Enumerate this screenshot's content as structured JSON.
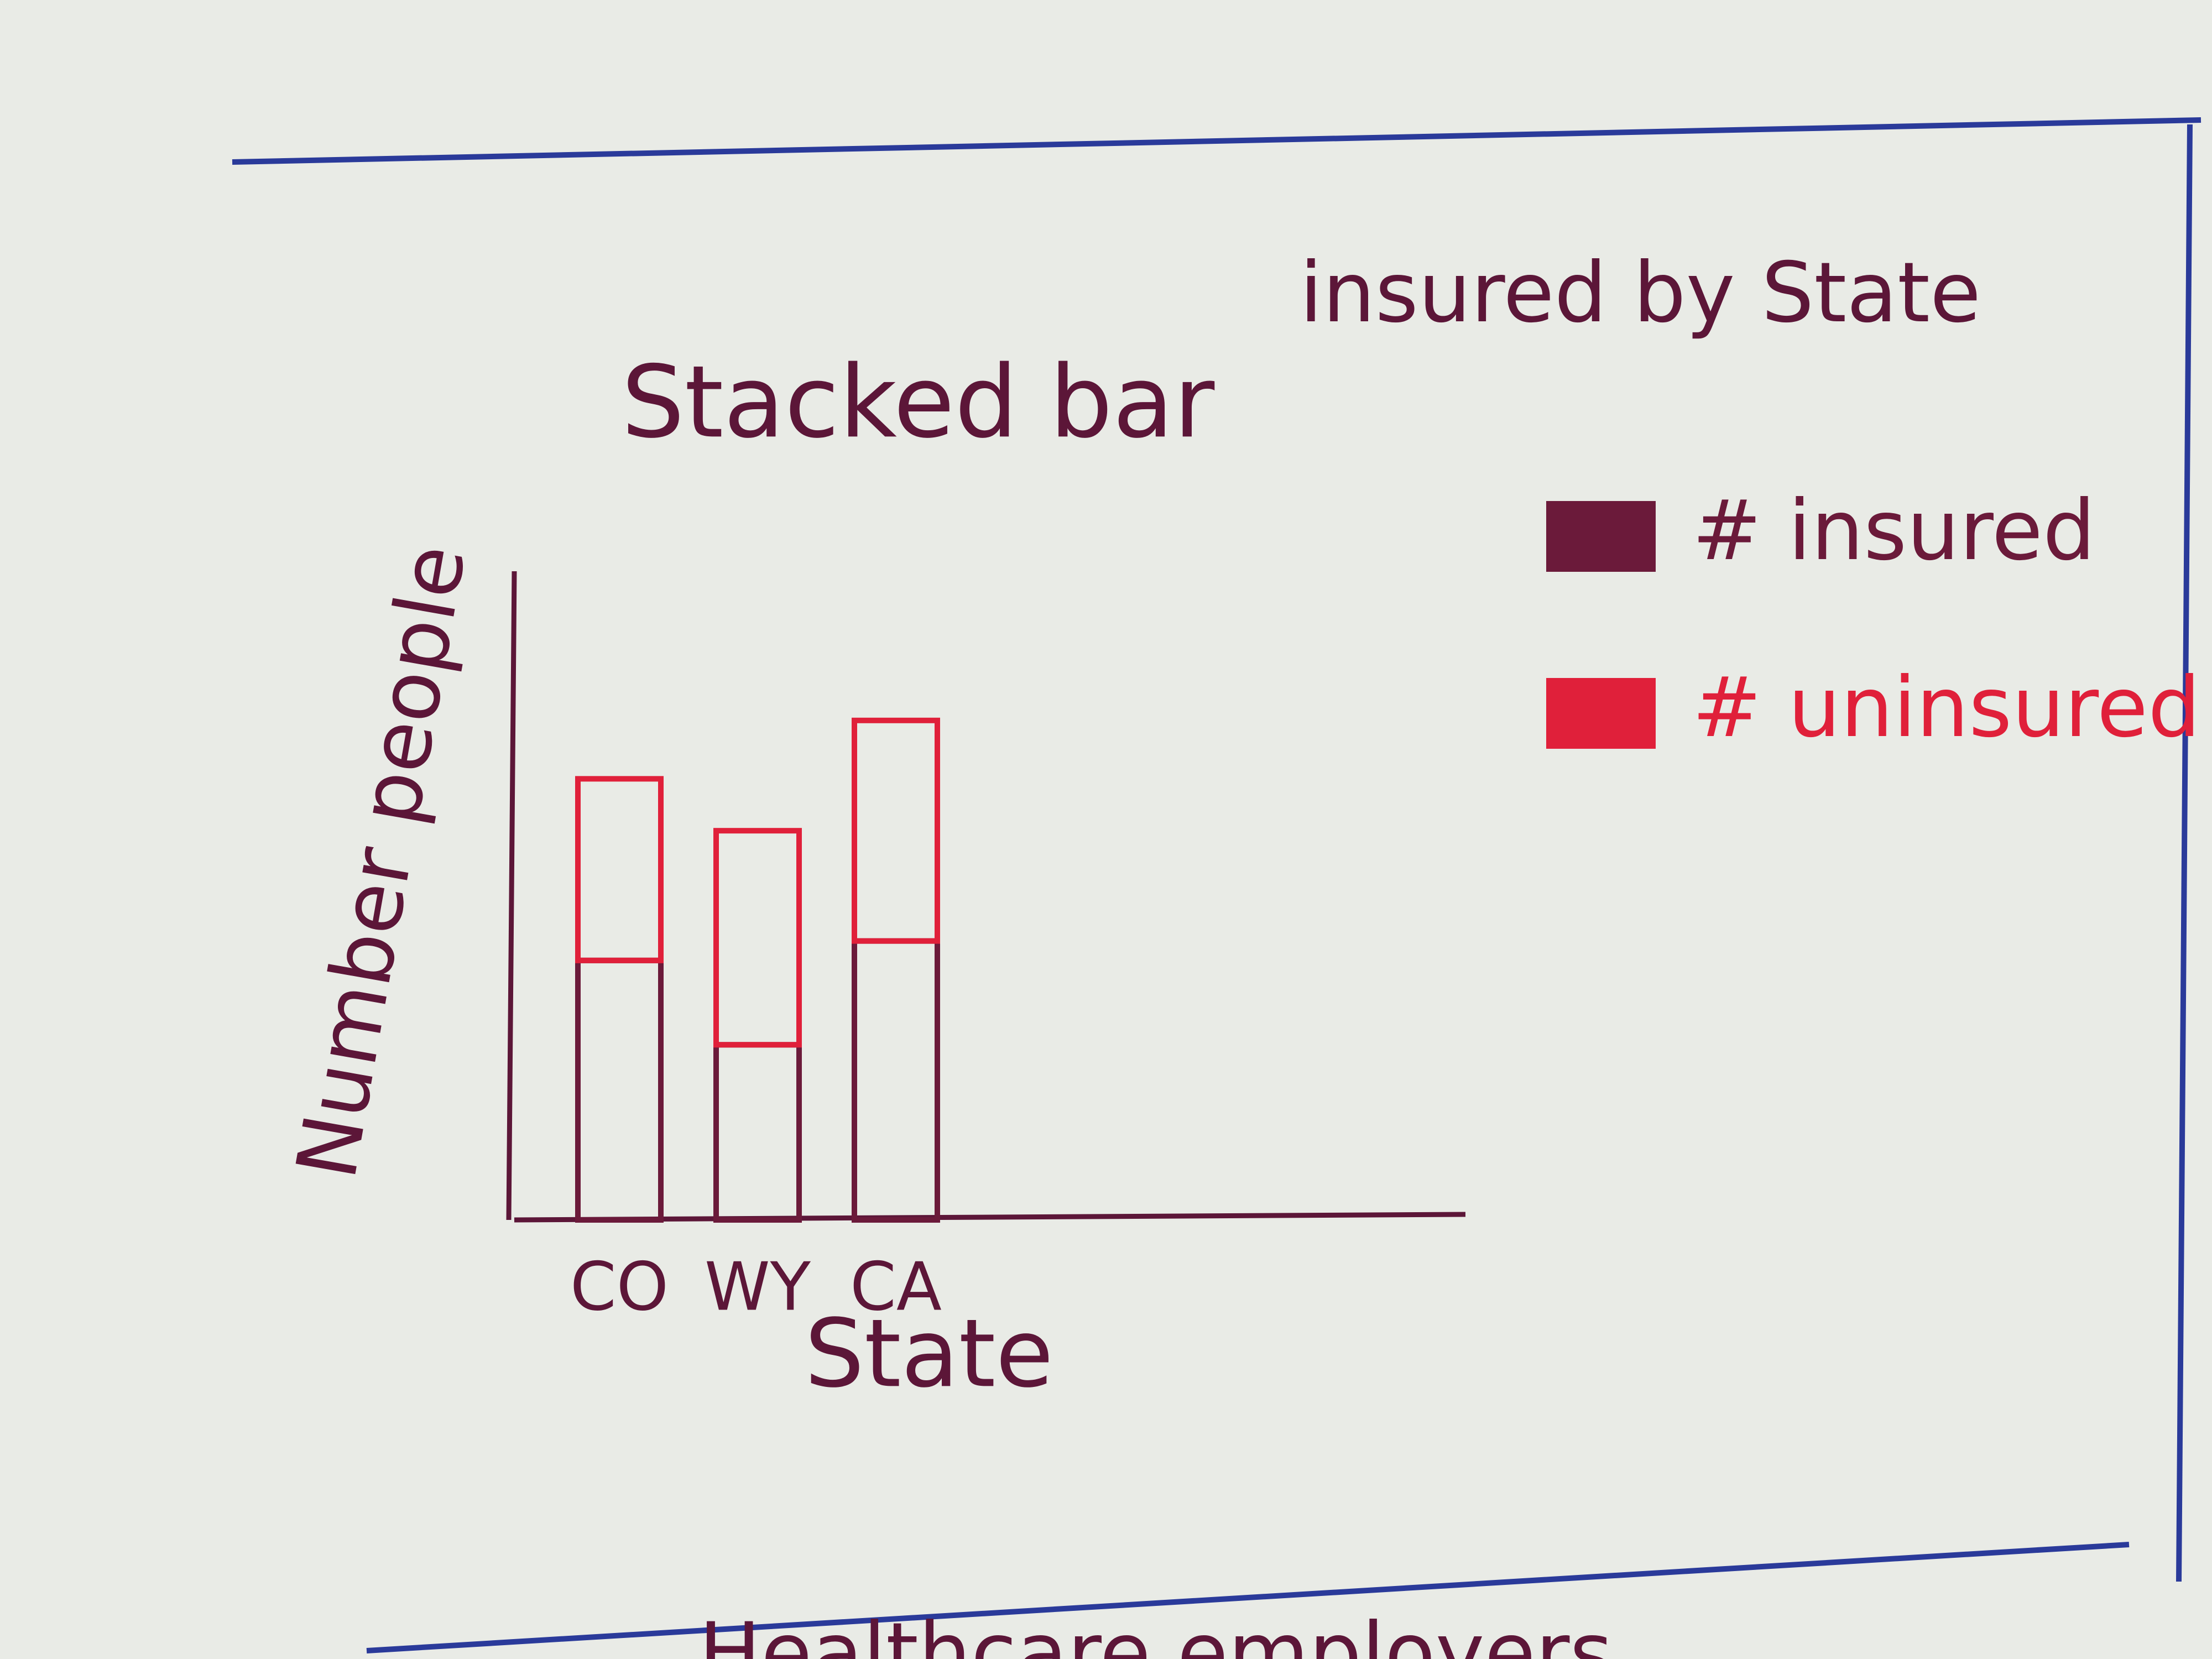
{
  "chart_data": {
    "type": "stacked-bar",
    "title": "Stacked bar",
    "subtitle": "insured by State",
    "x_label": "State",
    "y_label": "Number people",
    "categories": [
      "CO",
      "WY",
      "CA"
    ],
    "series": [
      {
        "name": "# insured",
        "color": "#6b1a3a",
        "values": [
          40,
          27,
          43
        ]
      },
      {
        "name": "# uninsured",
        "color": "#e0203a",
        "values": [
          28,
          33,
          34
        ]
      }
    ],
    "ylim": [
      0,
      100
    ]
  },
  "next_section": {
    "title": "Healthcare employers"
  }
}
